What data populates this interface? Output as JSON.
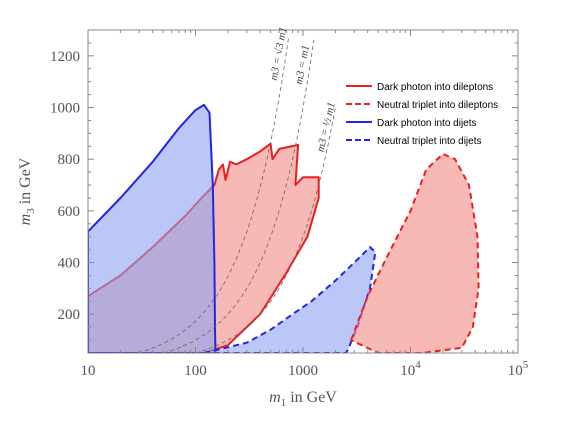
{
  "chart_data": {
    "type": "area",
    "xlabel": "m1 in GeV",
    "ylabel": "m3 in GeV",
    "xscale": "log",
    "xlim": [
      10,
      100000
    ],
    "ylim": [
      50,
      1300
    ],
    "x_ticks": [
      {
        "value": 10,
        "label": "10"
      },
      {
        "value": 100,
        "label": "100"
      },
      {
        "value": 1000,
        "label": "1000"
      },
      {
        "value": 10000,
        "label": "10^4"
      },
      {
        "value": 100000,
        "label": "10^5"
      }
    ],
    "y_ticks": [
      {
        "value": 200,
        "label": "200"
      },
      {
        "value": 400,
        "label": "400"
      },
      {
        "value": 600,
        "label": "600"
      },
      {
        "value": 800,
        "label": "800"
      },
      {
        "value": 1000,
        "label": "1000"
      },
      {
        "value": 1200,
        "label": "1200"
      }
    ],
    "grid": false,
    "legend_position": "top-right",
    "series": [
      {
        "name": "Dark photon into dileptons",
        "color": "#e8201f",
        "fill": "#f08a84",
        "dashed": false,
        "points": [
          [
            10,
            270
          ],
          [
            20,
            350
          ],
          [
            40,
            460
          ],
          [
            80,
            580
          ],
          [
            120,
            660
          ],
          [
            150,
            700
          ],
          [
            165,
            760
          ],
          [
            180,
            780
          ],
          [
            190,
            720
          ],
          [
            210,
            790
          ],
          [
            240,
            780
          ],
          [
            300,
            800
          ],
          [
            400,
            830
          ],
          [
            500,
            860
          ],
          [
            520,
            800
          ],
          [
            600,
            840
          ],
          [
            900,
            855
          ],
          [
            850,
            700
          ],
          [
            1000,
            730
          ],
          [
            1400,
            730
          ],
          [
            1400,
            650
          ],
          [
            1100,
            500
          ],
          [
            700,
            360
          ],
          [
            400,
            200
          ],
          [
            200,
            80
          ],
          [
            120,
            50
          ],
          [
            10,
            50
          ]
        ]
      },
      {
        "name": "Neutral triplet into dileptons",
        "color": "#e8201f",
        "fill": "#f08a84",
        "dashed": true,
        "points": [
          [
            2800,
            100
          ],
          [
            4000,
            270
          ],
          [
            6000,
            420
          ],
          [
            10000,
            600
          ],
          [
            14000,
            760
          ],
          [
            20000,
            820
          ],
          [
            26000,
            800
          ],
          [
            35000,
            700
          ],
          [
            42000,
            500
          ],
          [
            43000,
            300
          ],
          [
            38000,
            150
          ],
          [
            30000,
            70
          ],
          [
            13000,
            50
          ],
          [
            5000,
            50
          ],
          [
            2800,
            100
          ]
        ]
      },
      {
        "name": "Dark photon into dijets",
        "color": "#2424e6",
        "fill": "#8da1f2",
        "dashed": false,
        "points": [
          [
            10,
            520
          ],
          [
            20,
            650
          ],
          [
            40,
            790
          ],
          [
            70,
            920
          ],
          [
            100,
            990
          ],
          [
            120,
            1010
          ],
          [
            135,
            980
          ],
          [
            145,
            700
          ],
          [
            150,
            400
          ],
          [
            152,
            150
          ],
          [
            153,
            60
          ],
          [
            155,
            50
          ],
          [
            10,
            50
          ]
        ]
      },
      {
        "name": "Neutral triplet into dijets",
        "color": "#2424e6",
        "fill": "#8da1f2",
        "dashed": true,
        "points": [
          [
            120,
            50
          ],
          [
            300,
            90
          ],
          [
            500,
            140
          ],
          [
            800,
            200
          ],
          [
            1200,
            250
          ],
          [
            2000,
            330
          ],
          [
            3000,
            400
          ],
          [
            4200,
            460
          ],
          [
            4700,
            440
          ],
          [
            4200,
            300
          ],
          [
            3200,
            150
          ],
          [
            2600,
            60
          ],
          [
            2500,
            50
          ],
          [
            120,
            50
          ]
        ]
      }
    ],
    "reference_lines": [
      {
        "label": "m3 = √3 m1",
        "factor": 1.732
      },
      {
        "label": "m3 = m1",
        "factor": 1.0
      },
      {
        "label": "m3 = ½ m1",
        "factor": 0.5
      }
    ]
  }
}
